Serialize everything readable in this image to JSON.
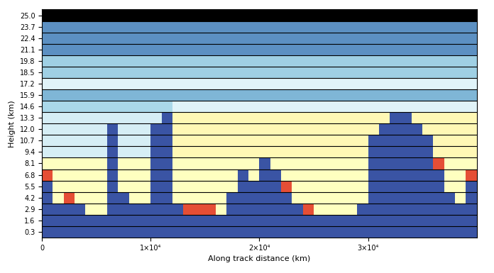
{
  "chart_data": {
    "type": "heatmap",
    "xlabel": "Along track distance (km)",
    "ylabel": "Height (km)",
    "x": [
      500,
      1500,
      2500,
      3500,
      4500,
      5500,
      6500,
      7500,
      8500,
      9500,
      10500,
      11500,
      12500,
      13500,
      14500,
      15500,
      16500,
      17500,
      18500,
      19500,
      20500,
      21500,
      22500,
      23500,
      24500,
      25500,
      26500,
      27500,
      28500,
      29500,
      30500,
      31500,
      32500,
      33500,
      34500,
      35500,
      36500,
      37500,
      38500,
      39500
    ],
    "xlim": [
      0,
      40000
    ],
    "xticks": [
      0,
      {
        "value": 10000,
        "label": "1×10⁴"
      },
      {
        "value": 20000,
        "label": "2×10⁴"
      },
      {
        "value": 30000,
        "label": "3×10⁴"
      }
    ],
    "y": [
      "0.3",
      "1.6",
      "2.9",
      "4.2",
      "5.5",
      "6.8",
      "8.1",
      "9.4",
      "10.7",
      "12.0",
      "13.3",
      "14.6",
      "15.9",
      "17.2",
      "18.5",
      "19.8",
      "21.1",
      "22.4",
      "23.7",
      "25.0"
    ],
    "color_range": [
      0,
      1
    ],
    "cells": [
      [
        0.95,
        0.95,
        0.95,
        0.95,
        0.95,
        0.95,
        0.95,
        0.95,
        0.95,
        0.95,
        0.95,
        0.95,
        0.95,
        0.95,
        0.95,
        0.95,
        0.95,
        0.95,
        0.95,
        0.95,
        0.95,
        0.95,
        0.95,
        0.95,
        0.95,
        0.95,
        0.95,
        0.95,
        0.95,
        0.95,
        0.95,
        0.95,
        0.95,
        0.95,
        0.95,
        0.95,
        0.95,
        0.95,
        0.95,
        0.95
      ],
      [
        0.95,
        0.95,
        0.95,
        0.95,
        0.95,
        0.95,
        0.95,
        0.95,
        0.95,
        0.95,
        0.95,
        0.95,
        0.95,
        0.95,
        0.95,
        0.95,
        0.95,
        0.95,
        0.95,
        0.95,
        0.95,
        0.95,
        0.95,
        0.95,
        0.95,
        0.95,
        0.95,
        0.95,
        0.95,
        0.95,
        0.95,
        0.95,
        0.95,
        0.95,
        0.95,
        0.95,
        0.95,
        0.95,
        0.95,
        0.95
      ],
      [
        0.95,
        0.95,
        0.95,
        0.95,
        0.5,
        0.5,
        0.95,
        0.95,
        0.95,
        0.95,
        0.95,
        0.95,
        0.95,
        0.15,
        0.15,
        0.15,
        0.5,
        0.95,
        0.95,
        0.95,
        0.95,
        0.95,
        0.95,
        0.95,
        0.15,
        0.5,
        0.5,
        0.5,
        0.5,
        0.95,
        0.95,
        0.95,
        0.95,
        0.95,
        0.95,
        0.95,
        0.95,
        0.95,
        0.95,
        0.95
      ],
      [
        0.95,
        0.5,
        0.15,
        0.5,
        0.5,
        0.5,
        0.95,
        0.95,
        0.5,
        0.5,
        0.95,
        0.95,
        0.5,
        0.5,
        0.5,
        0.5,
        0.5,
        0.95,
        0.95,
        0.95,
        0.95,
        0.95,
        0.95,
        0.5,
        0.5,
        0.5,
        0.5,
        0.5,
        0.5,
        0.5,
        0.95,
        0.95,
        0.95,
        0.95,
        0.95,
        0.95,
        0.95,
        0.95,
        0.5,
        0.95
      ],
      [
        0.95,
        0.5,
        0.5,
        0.5,
        0.5,
        0.5,
        0.95,
        0.5,
        0.5,
        0.5,
        0.95,
        0.95,
        0.5,
        0.5,
        0.5,
        0.5,
        0.5,
        0.5,
        0.95,
        0.95,
        0.95,
        0.95,
        0.15,
        0.5,
        0.5,
        0.5,
        0.5,
        0.5,
        0.5,
        0.5,
        0.95,
        0.95,
        0.95,
        0.95,
        0.95,
        0.95,
        0.95,
        0.5,
        0.5,
        0.95
      ],
      [
        0.15,
        0.5,
        0.5,
        0.5,
        0.5,
        0.5,
        0.95,
        0.5,
        0.5,
        0.5,
        0.95,
        0.95,
        0.5,
        0.5,
        0.5,
        0.5,
        0.5,
        0.5,
        0.95,
        0.5,
        0.95,
        0.95,
        0.5,
        0.5,
        0.5,
        0.5,
        0.5,
        0.5,
        0.5,
        0.5,
        0.95,
        0.95,
        0.95,
        0.95,
        0.95,
        0.95,
        0.95,
        0.5,
        0.5,
        0.15
      ],
      [
        0.5,
        0.5,
        0.5,
        0.5,
        0.5,
        0.5,
        0.95,
        0.5,
        0.5,
        0.5,
        0.95,
        0.95,
        0.5,
        0.5,
        0.5,
        0.5,
        0.5,
        0.5,
        0.5,
        0.5,
        0.95,
        0.5,
        0.5,
        0.5,
        0.5,
        0.5,
        0.5,
        0.5,
        0.5,
        0.5,
        0.95,
        0.95,
        0.95,
        0.95,
        0.95,
        0.95,
        0.15,
        0.5,
        0.5,
        0.5
      ],
      [
        0.62,
        0.62,
        0.62,
        0.62,
        0.62,
        0.62,
        0.95,
        0.62,
        0.62,
        0.62,
        0.95,
        0.95,
        0.48,
        0.48,
        0.48,
        0.48,
        0.48,
        0.48,
        0.48,
        0.48,
        0.48,
        0.48,
        0.48,
        0.48,
        0.48,
        0.48,
        0.48,
        0.48,
        0.48,
        0.48,
        0.95,
        0.95,
        0.95,
        0.95,
        0.95,
        0.95,
        0.48,
        0.48,
        0.48,
        0.48
      ],
      [
        0.62,
        0.62,
        0.62,
        0.62,
        0.62,
        0.62,
        0.95,
        0.62,
        0.62,
        0.62,
        0.95,
        0.95,
        0.48,
        0.48,
        0.48,
        0.48,
        0.48,
        0.48,
        0.48,
        0.48,
        0.48,
        0.48,
        0.48,
        0.48,
        0.48,
        0.48,
        0.48,
        0.48,
        0.48,
        0.48,
        0.95,
        0.95,
        0.95,
        0.95,
        0.95,
        0.95,
        0.48,
        0.48,
        0.48,
        0.48
      ],
      [
        0.62,
        0.62,
        0.62,
        0.62,
        0.62,
        0.62,
        0.95,
        0.62,
        0.62,
        0.62,
        0.95,
        0.95,
        0.48,
        0.48,
        0.48,
        0.48,
        0.48,
        0.48,
        0.48,
        0.48,
        0.48,
        0.48,
        0.48,
        0.48,
        0.48,
        0.48,
        0.48,
        0.48,
        0.48,
        0.48,
        0.48,
        0.95,
        0.95,
        0.95,
        0.95,
        0.48,
        0.48,
        0.48,
        0.48,
        0.48
      ],
      [
        0.62,
        0.62,
        0.62,
        0.62,
        0.62,
        0.62,
        0.62,
        0.62,
        0.62,
        0.62,
        0.62,
        0.95,
        0.48,
        0.48,
        0.48,
        0.48,
        0.48,
        0.48,
        0.48,
        0.48,
        0.48,
        0.48,
        0.48,
        0.48,
        0.48,
        0.48,
        0.48,
        0.48,
        0.48,
        0.48,
        0.48,
        0.48,
        0.95,
        0.95,
        0.48,
        0.48,
        0.48,
        0.48,
        0.48,
        0.48
      ],
      [
        0.7,
        0.7,
        0.7,
        0.7,
        0.7,
        0.7,
        0.7,
        0.7,
        0.7,
        0.7,
        0.7,
        0.7,
        0.6,
        0.6,
        0.6,
        0.6,
        0.6,
        0.6,
        0.6,
        0.6,
        0.6,
        0.6,
        0.6,
        0.6,
        0.6,
        0.6,
        0.6,
        0.6,
        0.6,
        0.6,
        0.6,
        0.6,
        0.6,
        0.6,
        0.6,
        0.6,
        0.6,
        0.6,
        0.6,
        0.6
      ],
      [
        0.78,
        0.78,
        0.78,
        0.78,
        0.78,
        0.78,
        0.78,
        0.78,
        0.78,
        0.78,
        0.78,
        0.78,
        0.78,
        0.78,
        0.78,
        0.78,
        0.78,
        0.78,
        0.78,
        0.78,
        0.78,
        0.78,
        0.78,
        0.78,
        0.78,
        0.78,
        0.78,
        0.78,
        0.78,
        0.78,
        0.78,
        0.78,
        0.78,
        0.78,
        0.78,
        0.78,
        0.78,
        0.78,
        0.78,
        0.78
      ],
      [
        0.6,
        0.6,
        0.6,
        0.6,
        0.6,
        0.6,
        0.6,
        0.6,
        0.6,
        0.6,
        0.6,
        0.6,
        0.6,
        0.6,
        0.6,
        0.6,
        0.6,
        0.6,
        0.6,
        0.6,
        0.6,
        0.6,
        0.6,
        0.6,
        0.6,
        0.6,
        0.6,
        0.6,
        0.6,
        0.6,
        0.6,
        0.6,
        0.6,
        0.6,
        0.6,
        0.6,
        0.6,
        0.6,
        0.6,
        0.6
      ],
      [
        0.72,
        0.72,
        0.72,
        0.72,
        0.72,
        0.72,
        0.72,
        0.72,
        0.72,
        0.72,
        0.72,
        0.72,
        0.72,
        0.72,
        0.72,
        0.72,
        0.72,
        0.72,
        0.72,
        0.72,
        0.72,
        0.72,
        0.72,
        0.72,
        0.72,
        0.72,
        0.72,
        0.72,
        0.72,
        0.72,
        0.72,
        0.72,
        0.72,
        0.72,
        0.72,
        0.72,
        0.72,
        0.72,
        0.72,
        0.72
      ],
      [
        0.72,
        0.72,
        0.72,
        0.72,
        0.72,
        0.72,
        0.72,
        0.72,
        0.72,
        0.72,
        0.72,
        0.72,
        0.72,
        0.72,
        0.72,
        0.72,
        0.72,
        0.72,
        0.72,
        0.72,
        0.72,
        0.72,
        0.72,
        0.72,
        0.72,
        0.72,
        0.72,
        0.72,
        0.72,
        0.72,
        0.72,
        0.72,
        0.72,
        0.72,
        0.72,
        0.72,
        0.72,
        0.72,
        0.72,
        0.72
      ],
      [
        0.85,
        0.85,
        0.85,
        0.85,
        0.85,
        0.85,
        0.85,
        0.85,
        0.85,
        0.85,
        0.85,
        0.85,
        0.85,
        0.85,
        0.85,
        0.85,
        0.85,
        0.85,
        0.85,
        0.85,
        0.85,
        0.85,
        0.85,
        0.85,
        0.85,
        0.85,
        0.85,
        0.85,
        0.85,
        0.85,
        0.85,
        0.85,
        0.85,
        0.85,
        0.85,
        0.85,
        0.85,
        0.85,
        0.85,
        0.85
      ],
      [
        0.85,
        0.85,
        0.85,
        0.85,
        0.85,
        0.85,
        0.85,
        0.85,
        0.85,
        0.85,
        0.85,
        0.85,
        0.85,
        0.85,
        0.85,
        0.85,
        0.85,
        0.85,
        0.85,
        0.85,
        0.85,
        0.85,
        0.85,
        0.85,
        0.85,
        0.85,
        0.85,
        0.85,
        0.85,
        0.85,
        0.85,
        0.85,
        0.85,
        0.85,
        0.85,
        0.85,
        0.85,
        0.85,
        0.85,
        0.85
      ],
      [
        0.85,
        0.85,
        0.85,
        0.85,
        0.85,
        0.85,
        0.85,
        0.85,
        0.85,
        0.85,
        0.85,
        0.85,
        0.85,
        0.85,
        0.85,
        0.85,
        0.85,
        0.85,
        0.85,
        0.85,
        0.85,
        0.85,
        0.85,
        0.85,
        0.85,
        0.85,
        0.85,
        0.85,
        0.85,
        0.85,
        0.85,
        0.85,
        0.85,
        0.85,
        0.85,
        0.85,
        0.85,
        0.85,
        0.85,
        0.85
      ],
      [
        null,
        null,
        null,
        null,
        null,
        null,
        null,
        null,
        null,
        null,
        null,
        null,
        null,
        null,
        null,
        null,
        null,
        null,
        null,
        null,
        null,
        null,
        null,
        null,
        null,
        null,
        null,
        null,
        null,
        null,
        null,
        null,
        null,
        null,
        null,
        null,
        null,
        null,
        null,
        null
      ]
    ]
  }
}
